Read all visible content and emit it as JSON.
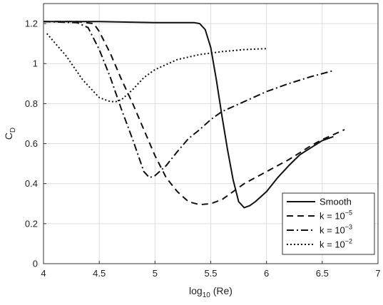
{
  "chart_data": {
    "type": "line",
    "xlabel": {
      "base": "log",
      "sub": "10",
      "rest": " (Re)"
    },
    "ylabel": {
      "main": "C",
      "sub": "D"
    },
    "xlim": [
      4,
      7
    ],
    "ylim": [
      0,
      1.3
    ],
    "xticks": [
      4,
      4.5,
      5,
      5.5,
      6,
      6.5,
      7
    ],
    "xtick_labels": [
      "4",
      "4.5",
      "5",
      "5.5",
      "6",
      "6.5",
      "7"
    ],
    "yticks": [
      0,
      0.2,
      0.4,
      0.6,
      0.8,
      1.0,
      1.2
    ],
    "ytick_labels": [
      "0",
      "0.2",
      "0.4",
      "0.6",
      "0.8",
      "1",
      "1.2"
    ],
    "grid": true,
    "legend_position": "bottom-right",
    "series": [
      {
        "name": "Smooth",
        "legend": {
          "base": "Smooth",
          "sup": ""
        },
        "style": "solid",
        "x": [
          4.0,
          4.5,
          5.0,
          5.2,
          5.35,
          5.4,
          5.45,
          5.5,
          5.55,
          5.6,
          5.65,
          5.7,
          5.75,
          5.8,
          5.85,
          5.9,
          6.0,
          6.1,
          6.2,
          6.3,
          6.4,
          6.5,
          6.6
        ],
        "y": [
          1.21,
          1.21,
          1.205,
          1.205,
          1.205,
          1.2,
          1.17,
          1.08,
          0.92,
          0.74,
          0.57,
          0.42,
          0.31,
          0.28,
          0.29,
          0.31,
          0.36,
          0.43,
          0.49,
          0.545,
          0.58,
          0.615,
          0.635
        ]
      },
      {
        "name": "k = 10^-5",
        "legend": {
          "base": "k = 10",
          "sup": "−5"
        },
        "style": "dashed",
        "x": [
          4.0,
          4.3,
          4.45,
          4.5,
          4.6,
          4.7,
          4.8,
          4.9,
          5.0,
          5.1,
          5.2,
          5.3,
          5.4,
          5.5,
          5.6,
          5.7,
          5.8,
          5.9,
          6.0,
          6.1,
          6.2,
          6.3,
          6.4,
          6.5,
          6.6,
          6.7
        ],
        "y": [
          1.21,
          1.21,
          1.2,
          1.16,
          1.05,
          0.92,
          0.8,
          0.67,
          0.54,
          0.43,
          0.36,
          0.31,
          0.295,
          0.3,
          0.32,
          0.36,
          0.4,
          0.43,
          0.46,
          0.49,
          0.52,
          0.555,
          0.59,
          0.62,
          0.645,
          0.67
        ]
      },
      {
        "name": "k = 10^-3",
        "legend": {
          "base": "k = 10",
          "sup": "−3"
        },
        "style": "dashdot",
        "x": [
          4.0,
          4.3,
          4.4,
          4.5,
          4.6,
          4.7,
          4.8,
          4.9,
          4.95,
          5.0,
          5.1,
          5.2,
          5.3,
          5.4,
          5.5,
          5.6,
          5.8,
          6.0,
          6.2,
          6.4,
          6.6
        ],
        "y": [
          1.21,
          1.205,
          1.18,
          1.07,
          0.93,
          0.77,
          0.62,
          0.46,
          0.43,
          0.44,
          0.49,
          0.56,
          0.625,
          0.67,
          0.72,
          0.76,
          0.81,
          0.86,
          0.9,
          0.935,
          0.965
        ]
      },
      {
        "name": "k = 10^-2",
        "legend": {
          "base": "k = 10",
          "sup": "−2"
        },
        "style": "dotted",
        "x": [
          4.03,
          4.2,
          4.35,
          4.5,
          4.6,
          4.65,
          4.7,
          4.8,
          4.9,
          5.0,
          5.2,
          5.4,
          5.6,
          5.8,
          6.0
        ],
        "y": [
          1.15,
          1.04,
          0.92,
          0.83,
          0.81,
          0.81,
          0.82,
          0.87,
          0.93,
          0.97,
          1.02,
          1.045,
          1.06,
          1.07,
          1.075
        ]
      }
    ]
  }
}
